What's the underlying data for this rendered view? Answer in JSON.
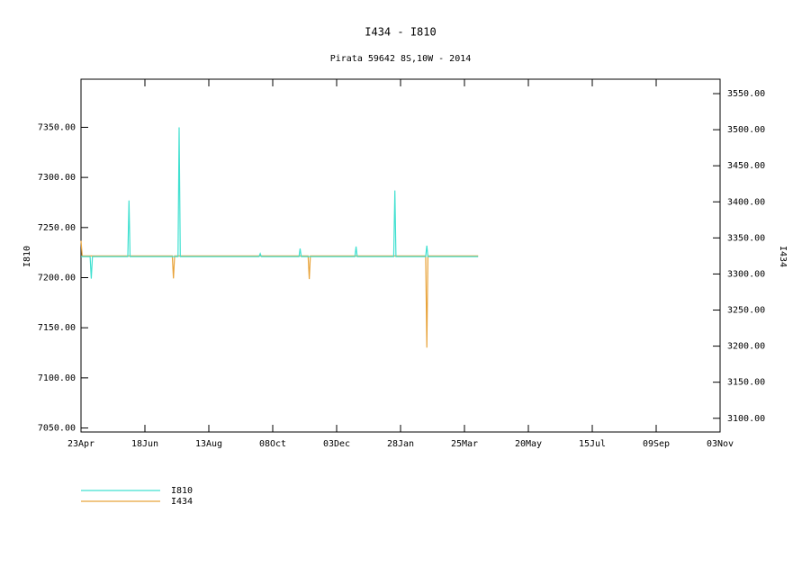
{
  "chart_data": {
    "type": "line",
    "title": "I434 - I810",
    "subtitle": "Pirata 59642 8S,10W - 2014",
    "ylabel": "I810",
    "y2label": "I434",
    "xlim": [
      0,
      560
    ],
    "xticks": [
      {
        "value": 0,
        "label": "23Apr"
      },
      {
        "value": 56,
        "label": "18Jun"
      },
      {
        "value": 112,
        "label": "13Aug"
      },
      {
        "value": 168,
        "label": "08Oct"
      },
      {
        "value": 224,
        "label": "03Dec"
      },
      {
        "value": 280,
        "label": "28Jan"
      },
      {
        "value": 336,
        "label": "25Mar"
      },
      {
        "value": 392,
        "label": "20May"
      },
      {
        "value": 448,
        "label": "15Jul"
      },
      {
        "value": 504,
        "label": "09Sep"
      },
      {
        "value": 560,
        "label": "03Nov"
      }
    ],
    "ylim": [
      7046,
      7398
    ],
    "yticks": [
      {
        "value": 7050,
        "label": "7050.00"
      },
      {
        "value": 7100,
        "label": "7100.00"
      },
      {
        "value": 7150,
        "label": "7150.00"
      },
      {
        "value": 7200,
        "label": "7200.00"
      },
      {
        "value": 7250,
        "label": "7250.00"
      },
      {
        "value": 7300,
        "label": "7300.00"
      },
      {
        "value": 7350,
        "label": "7350.00"
      }
    ],
    "y2lim": [
      3081,
      3570
    ],
    "y2ticks": [
      {
        "value": 3100,
        "label": "3100.00"
      },
      {
        "value": 3150,
        "label": "3150.00"
      },
      {
        "value": 3200,
        "label": "3200.00"
      },
      {
        "value": 3250,
        "label": "3250.00"
      },
      {
        "value": 3300,
        "label": "3300.00"
      },
      {
        "value": 3350,
        "label": "3350.00"
      },
      {
        "value": 3400,
        "label": "3400.00"
      },
      {
        "value": 3450,
        "label": "3450.00"
      },
      {
        "value": 3500,
        "label": "3500.00"
      },
      {
        "value": 3550,
        "label": "3550.00"
      }
    ],
    "series": [
      {
        "name": "I810",
        "color": "#40e0d0",
        "x": [
          0,
          8,
          9,
          10,
          41,
          42,
          43,
          85,
          86,
          87,
          156,
          157,
          158,
          191,
          192,
          193,
          240,
          241,
          242,
          274,
          275,
          276,
          302,
          303,
          304,
          348
        ],
        "values": [
          7221,
          7221,
          7199,
          7221,
          7221,
          7277,
          7221,
          7221,
          7350,
          7221,
          7221,
          7224,
          7221,
          7221,
          7229,
          7221,
          7221,
          7231,
          7221,
          7221,
          7287,
          7221,
          7221,
          7232,
          7221,
          7221
        ]
      },
      {
        "name": "I434",
        "color": "#e8a33a",
        "axis": "y2",
        "x": [
          0,
          1,
          80,
          81,
          82,
          199,
          200,
          201,
          302,
          303,
          304,
          348
        ],
        "values": [
          3346,
          3325,
          3325,
          3294,
          3325,
          3325,
          3293,
          3325,
          3325,
          3198,
          3325,
          3325
        ]
      }
    ]
  }
}
